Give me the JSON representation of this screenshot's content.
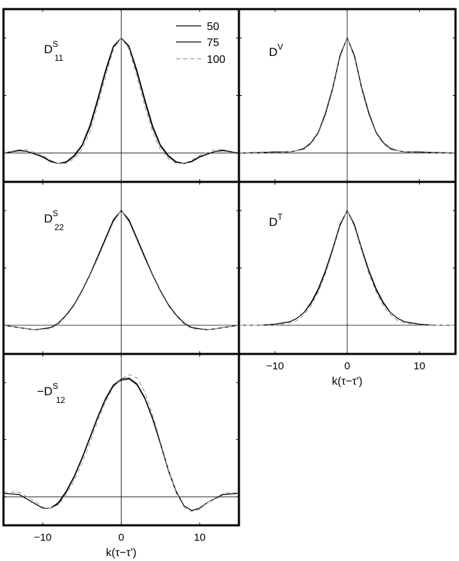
{
  "legend": {
    "entries": [
      {
        "label": "50",
        "color": "#000000",
        "dash": "none"
      },
      {
        "label": "75",
        "color": "#000000",
        "dash": "none"
      },
      {
        "label": "100",
        "color": "#9a9a9a",
        "dash": "6,4"
      }
    ]
  },
  "chart_data": [
    {
      "type": "line",
      "panel": "D11S",
      "label": {
        "main": "D",
        "sup": "S",
        "sub": "11",
        "prefix": ""
      },
      "xlim": [
        -15,
        15
      ],
      "ylim": [
        -0.25,
        1.25
      ],
      "yticks": [
        "0",
        "0.5",
        "1"
      ],
      "xticks": [
        "-10",
        "0",
        "10"
      ],
      "show_yticklabels": true,
      "show_xticklabels": false,
      "xlabel": "",
      "series": [
        {
          "label": "50",
          "x": [
            -15,
            -13,
            -12,
            -10,
            -9,
            -8,
            -7,
            -6,
            -5,
            -4,
            -3,
            -2,
            -1,
            0,
            1,
            2,
            3,
            4,
            5,
            6,
            7,
            8,
            9,
            10,
            12,
            13,
            15
          ],
          "y": [
            0,
            0.02,
            0.015,
            -0.03,
            -0.07,
            -0.09,
            -0.08,
            -0.03,
            0.06,
            0.22,
            0.45,
            0.7,
            0.92,
            1.0,
            0.92,
            0.7,
            0.45,
            0.22,
            0.06,
            -0.03,
            -0.08,
            -0.09,
            -0.07,
            -0.03,
            0.015,
            0.02,
            0
          ]
        },
        {
          "label": "75",
          "x": [
            -15,
            -13,
            -12,
            -10,
            -9,
            -8,
            -7,
            -6,
            -5,
            -4,
            -3,
            -2,
            -1,
            0,
            1,
            2,
            3,
            4,
            5,
            6,
            7,
            8,
            9,
            10,
            12,
            13,
            15
          ],
          "y": [
            0,
            0.025,
            0.015,
            -0.035,
            -0.075,
            -0.09,
            -0.075,
            -0.02,
            0.07,
            0.24,
            0.47,
            0.72,
            0.93,
            1.0,
            0.93,
            0.72,
            0.47,
            0.24,
            0.07,
            -0.02,
            -0.075,
            -0.09,
            -0.075,
            -0.035,
            0.015,
            0.025,
            0
          ]
        },
        {
          "label": "100",
          "x": [
            -15,
            -13,
            -12,
            -10,
            -9,
            -8,
            -7,
            -6,
            -5,
            -4,
            -3,
            -2,
            -1,
            0,
            1,
            2,
            3,
            4,
            5,
            6,
            7,
            8,
            9,
            10,
            12,
            13,
            15
          ],
          "y": [
            0,
            0.03,
            0.03,
            -0.02,
            -0.06,
            -0.09,
            -0.09,
            -0.05,
            0.03,
            0.18,
            0.41,
            0.66,
            0.9,
            1.0,
            0.9,
            0.66,
            0.41,
            0.18,
            0.03,
            -0.05,
            -0.09,
            -0.09,
            -0.06,
            -0.02,
            0.03,
            0.03,
            0
          ]
        }
      ]
    },
    {
      "type": "line",
      "panel": "DV",
      "label": {
        "main": "D",
        "sup": "V",
        "sub": "",
        "prefix": ""
      },
      "xlim": [
        -15,
        15
      ],
      "ylim": [
        -0.25,
        1.25
      ],
      "yticks": [
        "0",
        "0.5",
        "1"
      ],
      "xticks": [
        "-10",
        "0",
        "10"
      ],
      "show_yticklabels": false,
      "show_xticklabels": false,
      "xlabel": "",
      "series": [
        {
          "label": "50",
          "x": [
            -15,
            -12,
            -10,
            -8,
            -7,
            -6,
            -5,
            -4,
            -3,
            -2,
            -1,
            0,
            1,
            2,
            3,
            4,
            5,
            6,
            7,
            8,
            10,
            12,
            15
          ],
          "y": [
            0,
            0.005,
            0.01,
            0.01,
            0.02,
            0.04,
            0.09,
            0.18,
            0.34,
            0.56,
            0.84,
            1.0,
            0.84,
            0.56,
            0.34,
            0.18,
            0.09,
            0.04,
            0.02,
            0.01,
            0.01,
            0.005,
            0
          ]
        },
        {
          "label": "75",
          "x": [
            -15,
            -12,
            -10,
            -8,
            -7,
            -6,
            -5,
            -4,
            -3,
            -2,
            -1,
            0,
            1,
            2,
            3,
            4,
            5,
            6,
            7,
            8,
            10,
            12,
            15
          ],
          "y": [
            0,
            0.005,
            0.01,
            0.01,
            0.02,
            0.04,
            0.09,
            0.18,
            0.35,
            0.57,
            0.85,
            1.0,
            0.85,
            0.57,
            0.35,
            0.18,
            0.09,
            0.04,
            0.02,
            0.01,
            0.01,
            0.005,
            0
          ]
        },
        {
          "label": "100",
          "x": [
            -15,
            -12,
            -10,
            -8,
            -7,
            -6,
            -5,
            -4,
            -3,
            -2,
            -1,
            0,
            1,
            2,
            3,
            4,
            5,
            6,
            7,
            8,
            10,
            12,
            15
          ],
          "y": [
            0,
            0,
            0.005,
            0.01,
            0.02,
            0.03,
            0.08,
            0.17,
            0.33,
            0.55,
            0.83,
            1.0,
            0.83,
            0.55,
            0.33,
            0.17,
            0.08,
            0.03,
            0.02,
            0.01,
            0.005,
            0,
            0
          ]
        }
      ]
    },
    {
      "type": "line",
      "panel": "D22S",
      "label": {
        "main": "D",
        "sup": "S",
        "sub": "22",
        "prefix": ""
      },
      "xlim": [
        -15,
        15
      ],
      "ylim": [
        -0.25,
        1.25
      ],
      "yticks": [
        "0",
        "0.5",
        "1"
      ],
      "xticks": [
        "-10",
        "0",
        "10"
      ],
      "show_yticklabels": true,
      "show_xticklabels": false,
      "xlabel": "",
      "series": [
        {
          "label": "50",
          "x": [
            -15,
            -13,
            -11,
            -9,
            -8,
            -7,
            -6,
            -5,
            -4,
            -3,
            -2,
            -1,
            0,
            1,
            2,
            3,
            4,
            5,
            6,
            7,
            8,
            9,
            11,
            13,
            15
          ],
          "y": [
            0,
            -0.02,
            -0.04,
            -0.02,
            0.02,
            0.09,
            0.18,
            0.3,
            0.44,
            0.59,
            0.75,
            0.91,
            1.0,
            0.91,
            0.75,
            0.59,
            0.44,
            0.3,
            0.18,
            0.09,
            0.02,
            -0.02,
            -0.04,
            -0.02,
            0
          ]
        },
        {
          "label": "75",
          "x": [
            -15,
            -13,
            -11,
            -9,
            -8,
            -7,
            -6,
            -5,
            -4,
            -3,
            -2,
            -1,
            0,
            1,
            2,
            3,
            4,
            5,
            6,
            7,
            8,
            9,
            11,
            13,
            15
          ],
          "y": [
            0,
            -0.02,
            -0.04,
            -0.02,
            0.02,
            0.09,
            0.18,
            0.3,
            0.44,
            0.6,
            0.76,
            0.92,
            1.0,
            0.92,
            0.76,
            0.6,
            0.44,
            0.3,
            0.18,
            0.09,
            0.02,
            -0.02,
            -0.04,
            -0.02,
            0
          ]
        },
        {
          "label": "100",
          "x": [
            -15,
            -13,
            -11,
            -9,
            -8,
            -7,
            -6,
            -5,
            -4,
            -3,
            -2,
            -1,
            0,
            1,
            2,
            3,
            4,
            5,
            6,
            7,
            8,
            9,
            11,
            13,
            15
          ],
          "y": [
            0,
            -0.02,
            -0.04,
            -0.03,
            0.01,
            0.08,
            0.17,
            0.29,
            0.43,
            0.58,
            0.74,
            0.9,
            1.0,
            0.9,
            0.74,
            0.58,
            0.43,
            0.29,
            0.17,
            0.08,
            0.01,
            -0.03,
            -0.04,
            -0.02,
            0
          ]
        }
      ]
    },
    {
      "type": "line",
      "panel": "DT",
      "label": {
        "main": "D",
        "sup": "T",
        "sub": "",
        "prefix": ""
      },
      "xlim": [
        -15,
        15
      ],
      "ylim": [
        -0.25,
        1.25
      ],
      "yticks": [
        "0",
        "0.5",
        "1"
      ],
      "xticks": [
        "-10",
        "0",
        "10"
      ],
      "show_yticklabels": false,
      "show_xticklabels": true,
      "xlabel": "k(τ−τ')",
      "series": [
        {
          "label": "50",
          "x": [
            -15,
            -12,
            -10,
            -8,
            -7,
            -6,
            -5,
            -4,
            -3,
            -2,
            -1,
            0,
            1,
            2,
            3,
            4,
            5,
            6,
            7,
            8,
            10,
            12,
            15
          ],
          "y": [
            0,
            0,
            0.01,
            0.03,
            0.06,
            0.11,
            0.19,
            0.31,
            0.47,
            0.66,
            0.87,
            1.0,
            0.87,
            0.66,
            0.47,
            0.31,
            0.19,
            0.11,
            0.06,
            0.03,
            0.01,
            0,
            0
          ]
        },
        {
          "label": "75",
          "x": [
            -15,
            -12,
            -10,
            -8,
            -7,
            -6,
            -5,
            -4,
            -3,
            -2,
            -1,
            0,
            1,
            2,
            3,
            4,
            5,
            6,
            7,
            8,
            10,
            12,
            15
          ],
          "y": [
            0,
            0,
            0.01,
            0.03,
            0.06,
            0.11,
            0.2,
            0.32,
            0.48,
            0.67,
            0.88,
            1.0,
            0.88,
            0.67,
            0.48,
            0.32,
            0.2,
            0.11,
            0.06,
            0.03,
            0.01,
            0,
            0
          ]
        },
        {
          "label": "100",
          "x": [
            -15,
            -12,
            -10,
            -8,
            -7,
            -6,
            -5,
            -4,
            -3,
            -2,
            -1,
            0,
            1,
            2,
            3,
            4,
            5,
            6,
            7,
            8,
            10,
            12,
            15
          ],
          "y": [
            0,
            0,
            0,
            0.02,
            0.04,
            0.09,
            0.17,
            0.29,
            0.45,
            0.65,
            0.86,
            1.0,
            0.86,
            0.65,
            0.45,
            0.29,
            0.17,
            0.09,
            0.04,
            0.02,
            0,
            0,
            0
          ]
        }
      ]
    },
    {
      "type": "line",
      "panel": "D12S",
      "label": {
        "main": "D",
        "sup": "S",
        "sub": "12",
        "prefix": "−"
      },
      "xlim": [
        -15,
        15
      ],
      "ylim": [
        -0.25,
        1.25
      ],
      "yticks": [
        "0",
        "0.5",
        "1"
      ],
      "xticks": [
        "-10",
        "0",
        "10"
      ],
      "show_yticklabels": true,
      "show_xticklabels": true,
      "xlabel": "k(τ−τ')",
      "series": [
        {
          "label": "50",
          "x": [
            -15,
            -13,
            -11,
            -10,
            -9,
            -8,
            -7,
            -6,
            -5,
            -4,
            -3,
            -2,
            -1,
            0,
            1,
            2,
            3,
            4,
            5,
            6,
            7,
            8,
            9,
            10,
            11,
            13,
            15
          ],
          "y": [
            0.03,
            0.02,
            -0.06,
            -0.1,
            -0.1,
            -0.06,
            0.04,
            0.17,
            0.33,
            0.51,
            0.69,
            0.85,
            0.97,
            1.02,
            1.03,
            0.98,
            0.86,
            0.68,
            0.46,
            0.23,
            0.04,
            -0.08,
            -0.12,
            -0.1,
            -0.05,
            0.02,
            0.03
          ]
        },
        {
          "label": "75",
          "x": [
            -15,
            -13,
            -11,
            -10,
            -9,
            -8,
            -7,
            -6,
            -5,
            -4,
            -3,
            -2,
            -1,
            0,
            1,
            2,
            3,
            4,
            5,
            6,
            7,
            8,
            9,
            10,
            11,
            13,
            15
          ],
          "y": [
            0.03,
            0.02,
            -0.06,
            -0.1,
            -0.1,
            -0.05,
            0.05,
            0.18,
            0.34,
            0.52,
            0.7,
            0.86,
            0.98,
            1.03,
            1.04,
            0.99,
            0.87,
            0.69,
            0.47,
            0.24,
            0.05,
            -0.08,
            -0.12,
            -0.1,
            -0.05,
            0.02,
            0.03
          ]
        },
        {
          "label": "100",
          "x": [
            -15,
            -13,
            -11,
            -10,
            -9,
            -8,
            -7,
            -6,
            -5,
            -4,
            -3,
            -2,
            -1,
            0,
            1,
            2,
            3,
            4,
            5,
            6,
            7,
            8,
            9,
            10,
            11,
            13,
            15
          ],
          "y": [
            0.04,
            0.04,
            -0.04,
            -0.09,
            -0.1,
            -0.07,
            0.02,
            0.14,
            0.29,
            0.47,
            0.66,
            0.83,
            0.96,
            1.03,
            1.07,
            1.04,
            0.92,
            0.72,
            0.48,
            0.24,
            0.04,
            -0.09,
            -0.13,
            -0.11,
            -0.05,
            0.03,
            0.04
          ]
        }
      ]
    }
  ]
}
